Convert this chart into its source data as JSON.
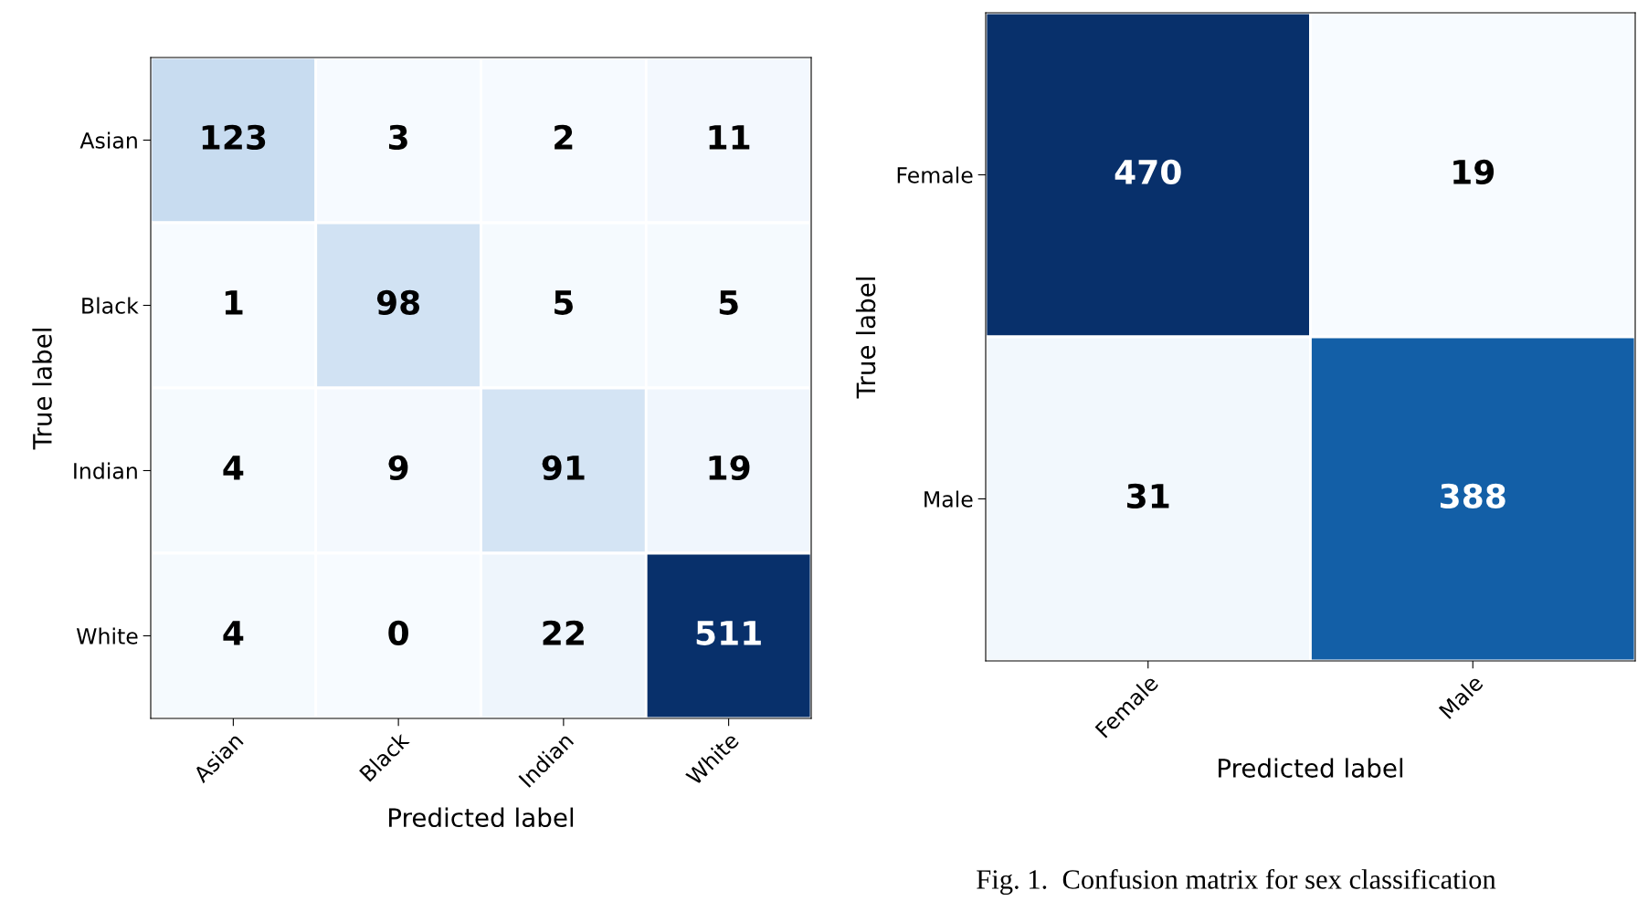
{
  "chart_data": [
    {
      "type": "heatmap",
      "xlabel": "Predicted label",
      "ylabel": "True label",
      "categories": [
        "Asian",
        "Black",
        "Indian",
        "White"
      ],
      "y_categories": [
        "Asian",
        "Black",
        "Indian",
        "White"
      ],
      "cells": [
        [
          123,
          3,
          2,
          11
        ],
        [
          1,
          98,
          5,
          5
        ],
        [
          4,
          9,
          91,
          19
        ],
        [
          4,
          0,
          22,
          511
        ]
      ],
      "data_labels": true
    },
    {
      "type": "heatmap",
      "xlabel": "Predicted label",
      "ylabel": "True label",
      "categories": [
        "Female",
        "Male"
      ],
      "y_categories": [
        "Female",
        "Male"
      ],
      "cells": [
        [
          470,
          19
        ],
        [
          31,
          388
        ]
      ],
      "data_labels": true,
      "annotations": [
        "Fig. 1.  Confusion matrix for sex classification"
      ]
    }
  ]
}
